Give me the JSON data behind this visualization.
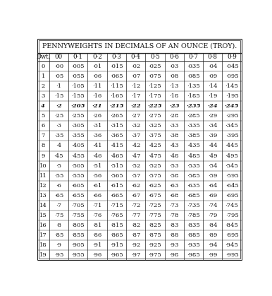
{
  "title": "PENNYWEIGHTS IN DECIMALS OF AN OUNCE (TROY).",
  "col_headers": [
    "Dwt.",
    "00",
    "0·1",
    "0·2",
    "0·3",
    "0·4",
    "0·5",
    "0·6",
    "0·7",
    "0·8",
    "0·9"
  ],
  "rows": [
    [
      0,
      ".00",
      ".005",
      ".01",
      ".015",
      ".02",
      ".025",
      ".03",
      ".035",
      ".04",
      ".045"
    ],
    [
      1,
      ".05",
      ".055",
      ".06",
      ".065",
      ".07",
      ".075",
      ".08",
      ".085",
      ".09",
      ".095"
    ],
    [
      2,
      ".1",
      ".105",
      ".11",
      ".115",
      ".12",
      ".125",
      ".13",
      ".135",
      ".14",
      ".145"
    ],
    [
      3,
      ".15",
      ".155",
      ".16",
      ".165",
      ".17",
      ".175",
      ".18",
      ".185",
      ".19",
      ".195"
    ],
    [
      4,
      ".2",
      ".205",
      ".21",
      ".215",
      ".22",
      ".225",
      ".23",
      ".235",
      ".24",
      ".245"
    ],
    [
      5,
      ".25",
      ".255",
      ".26",
      ".265",
      ".27",
      ".275",
      ".28",
      ".285",
      ".29",
      ".295"
    ],
    [
      6,
      ".3",
      ".305",
      ".31",
      ".315",
      ".32",
      ".325",
      ".33",
      ".335",
      ".34",
      ".345"
    ],
    [
      7,
      ".35",
      ".355",
      ".36",
      ".365",
      ".37",
      ".375",
      ".38",
      ".385",
      ".39",
      ".395"
    ],
    [
      8,
      ".4",
      ".405",
      ".41",
      ".415",
      ".42",
      ".425",
      ".43",
      ".435",
      ".44",
      ".445"
    ],
    [
      9,
      ".45",
      ".455",
      ".46",
      ".465",
      ".47",
      ".475",
      ".48",
      ".485",
      ".49",
      ".495"
    ],
    [
      10,
      ".5",
      ".505",
      ".51",
      ".515",
      ".52",
      ".525",
      ".53",
      ".535",
      ".54",
      ".545"
    ],
    [
      11,
      ".55",
      ".555",
      ".56",
      ".565",
      ".57",
      ".575",
      ".58",
      ".585",
      ".59",
      ".595"
    ],
    [
      12,
      ".6",
      ".605",
      ".61",
      ".615",
      ".62",
      ".625",
      ".63",
      ".635",
      ".64",
      ".645"
    ],
    [
      13,
      ".65",
      ".655",
      ".66",
      ".665",
      ".67",
      ".675",
      ".68",
      ".685",
      ".69",
      ".695"
    ],
    [
      14,
      ".7",
      ".705",
      ".71",
      ".715",
      ".72",
      ".725",
      ".73",
      ".735",
      ".74",
      ".745"
    ],
    [
      15,
      ".75",
      ".755",
      ".76",
      ".765",
      ".77",
      ".775",
      ".78",
      ".785",
      ".79",
      ".795"
    ],
    [
      16,
      ".8",
      ".805",
      ".81",
      ".815",
      ".82",
      ".825",
      ".83",
      ".835",
      ".84",
      ".845"
    ],
    [
      17,
      ".85",
      ".855",
      ".86",
      ".865",
      ".87",
      ".875",
      ".88",
      ".885",
      ".89",
      ".895"
    ],
    [
      18,
      ".9",
      ".905",
      ".91",
      ".915",
      ".92",
      ".925",
      ".93",
      ".935",
      ".94",
      ".945"
    ],
    [
      19,
      ".95",
      ".955",
      ".96",
      ".965",
      ".97",
      ".975",
      ".98",
      ".985",
      ".99",
      ".995"
    ]
  ],
  "bold_rows": [
    4
  ],
  "bg_color": "#ffffff",
  "text_color": "#111111",
  "line_color": "#222222",
  "title_fontsize": 6.8,
  "header_fontsize": 6.2,
  "cell_fontsize": 6.0
}
